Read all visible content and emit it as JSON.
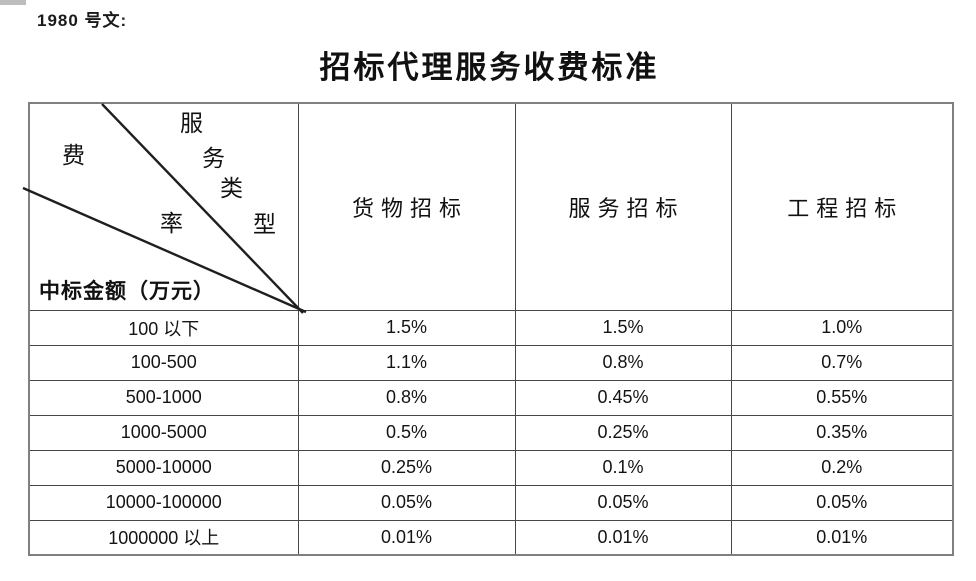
{
  "page": {
    "doc_ref": "1980 号文:",
    "title": "招标代理服务收费标准"
  },
  "table": {
    "corner": {
      "service_type_label": "服务类型",
      "fee_rate_label": "费率",
      "amount_label": "中标金额（万元）"
    },
    "column_headers": [
      "货物招标",
      "服务招标",
      "工程招标"
    ],
    "rows": [
      {
        "range": "100 以下",
        "values": [
          "1.5%",
          "1.5%",
          "1.0%"
        ]
      },
      {
        "range": "100-500",
        "values": [
          "1.1%",
          "0.8%",
          "0.7%"
        ]
      },
      {
        "range": "500-1000",
        "values": [
          "0.8%",
          "0.45%",
          "0.55%"
        ]
      },
      {
        "range": "1000-5000",
        "values": [
          "0.5%",
          "0.25%",
          "0.35%"
        ]
      },
      {
        "range": "5000-10000",
        "values": [
          "0.25%",
          "0.1%",
          "0.2%"
        ]
      },
      {
        "range": "10000-100000",
        "values": [
          "0.05%",
          "0.05%",
          "0.05%"
        ]
      },
      {
        "range": "1000000 以上",
        "values": [
          "0.01%",
          "0.01%",
          "0.01%"
        ]
      }
    ],
    "colors": {
      "text": "#1a1a1a",
      "border_outer": "#808080",
      "border_inner": "#474747",
      "diagonal_line": "#1f1f1f"
    }
  }
}
